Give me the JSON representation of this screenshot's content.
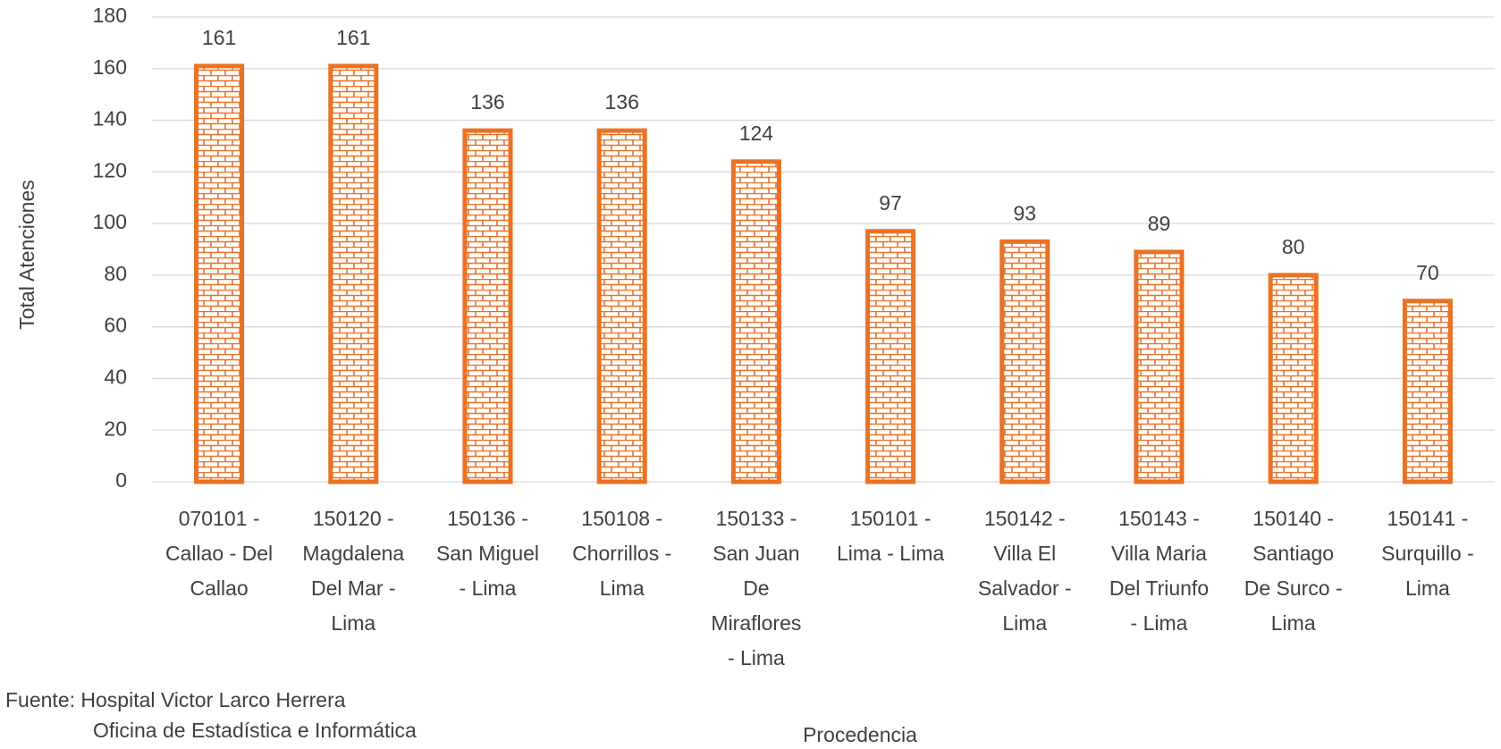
{
  "chart_data": {
    "type": "bar",
    "categories": [
      [
        "070101 -",
        "Callao - Del",
        "Callao"
      ],
      [
        "150120 -",
        "Magdalena",
        "Del Mar -",
        "Lima"
      ],
      [
        "150136 -",
        "San Miguel",
        "- Lima"
      ],
      [
        "150108 -",
        "Chorrillos -",
        "Lima"
      ],
      [
        "150133 -",
        "San Juan",
        "De",
        "Miraflores",
        "- Lima"
      ],
      [
        "150101 -",
        "Lima - Lima"
      ],
      [
        "150142 -",
        "Villa El",
        "Salvador -",
        "Lima"
      ],
      [
        "150143 -",
        "Villa Maria",
        "Del Triunfo",
        "- Lima"
      ],
      [
        "150140 -",
        "Santiago",
        "De Surco -",
        "Lima"
      ],
      [
        "150141 -",
        "Surquillo -",
        "Lima"
      ]
    ],
    "values": [
      161,
      161,
      136,
      136,
      124,
      97,
      93,
      89,
      80,
      70
    ],
    "color": "#e97225",
    "ylim": [
      0,
      180
    ],
    "yticks": [
      0,
      20,
      40,
      60,
      80,
      100,
      120,
      140,
      160,
      180
    ],
    "grid": true,
    "ylabel": "Total Atenciones",
    "xlabel": "Procedencia",
    "source": [
      "Fuente:  Hospital Victor Larco Herrera",
      "Oficina de Estadística e Informática"
    ]
  }
}
